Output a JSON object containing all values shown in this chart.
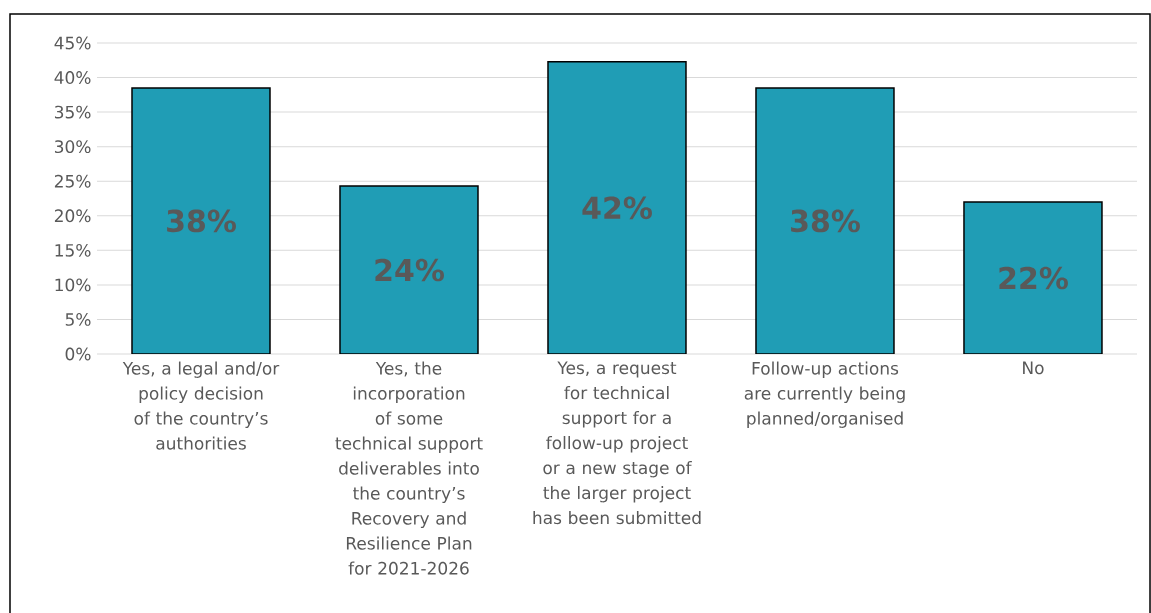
{
  "chart_data": {
    "type": "bar",
    "categories": [
      "Yes, a legal and/or policy decision of the country’s authorities",
      "Yes, the incorporation of some technical support deliverables into the country’s Recovery and Resilience Plan for 2021-2026",
      "Yes, a request for technical support for a follow-up project or a new stage of the larger project has been submitted",
      "Follow-up actions are currently being planned/organised",
      "No"
    ],
    "values": [
      38.5,
      24.3,
      42.3,
      38.5,
      22.0
    ],
    "value_labels": [
      "38%",
      "24%",
      "42%",
      "38%",
      "22%"
    ],
    "color": "#209db5",
    "ylim": [
      0,
      45
    ],
    "yticks": [
      {
        "value": 0,
        "label": "0%"
      },
      {
        "value": 5,
        "label": "5%"
      },
      {
        "value": 10,
        "label": "10%"
      },
      {
        "value": 15,
        "label": "15%"
      },
      {
        "value": 20,
        "label": "20%"
      },
      {
        "value": 25,
        "label": "25%"
      },
      {
        "value": 30,
        "label": "30%"
      },
      {
        "value": 35,
        "label": "35%"
      },
      {
        "value": 40,
        "label": "40%"
      },
      {
        "value": 45,
        "label": "45%"
      }
    ],
    "grid": "y"
  }
}
